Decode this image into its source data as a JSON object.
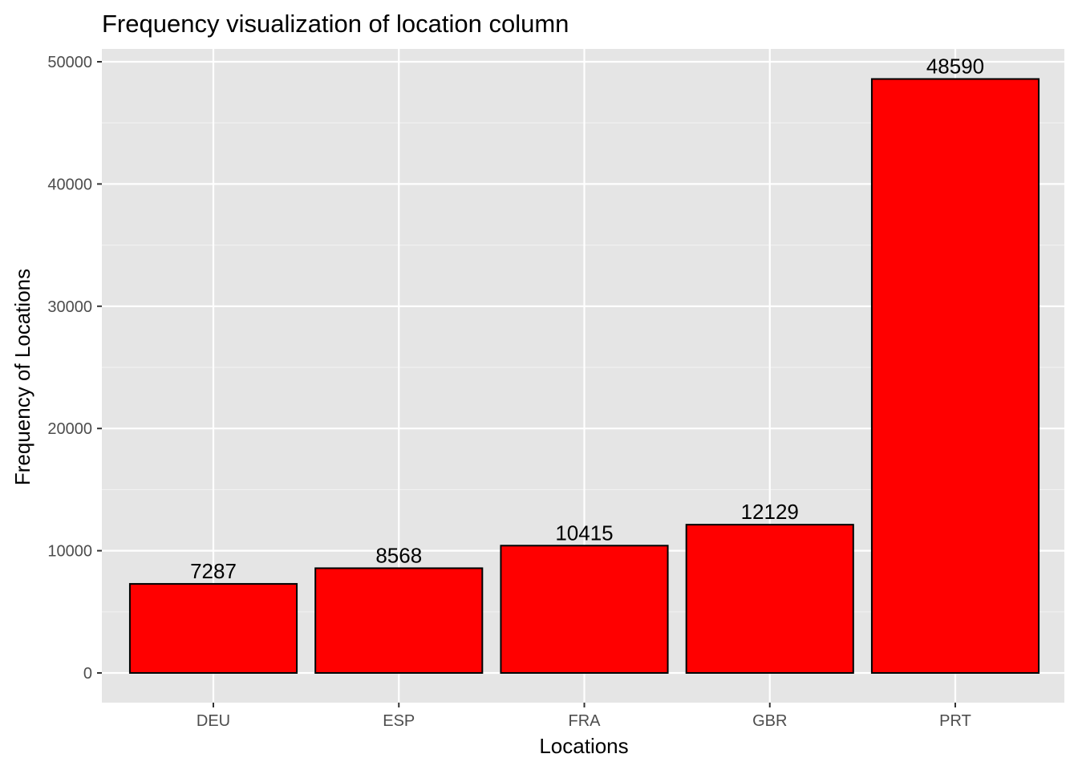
{
  "chart_data": {
    "type": "bar",
    "title": "Frequency visualization of location column",
    "xlabel": "Locations",
    "ylabel": "Frequency of Locations",
    "categories": [
      "DEU",
      "ESP",
      "FRA",
      "GBR",
      "PRT"
    ],
    "values": [
      7287,
      8568,
      10415,
      12129,
      48590
    ],
    "data_labels": [
      "7287",
      "8568",
      "10415",
      "12129",
      "48590"
    ],
    "ylim": [
      0,
      52000
    ],
    "y_ticks": [
      0,
      10000,
      20000,
      30000,
      40000,
      50000
    ],
    "y_tick_labels": [
      "0",
      "10000",
      "20000",
      "30000",
      "40000",
      "50000"
    ],
    "grid": true,
    "legend": "none",
    "colors": {
      "bar_fill": "#ff0000",
      "bar_outline": "#000000",
      "panel_background": "#e5e5e5",
      "grid_major": "#ffffff",
      "grid_minor": "#f2f2f2",
      "tick_text": "#4d4d4d"
    }
  }
}
